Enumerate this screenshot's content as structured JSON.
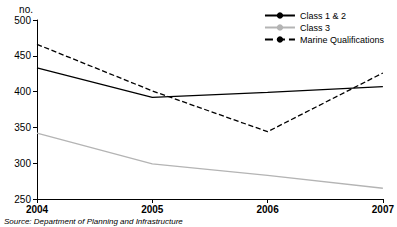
{
  "chart_data": {
    "type": "line",
    "y_label": "no.",
    "source": "Source: Department of Planning and Infrastructure",
    "categories": [
      "2004",
      "2005",
      "2006",
      "2007"
    ],
    "series": [
      {
        "name": "Class 1 & 2",
        "color": "#000000",
        "line_style": "solid",
        "values": [
          433,
          392,
          399,
          407
        ]
      },
      {
        "name": "Class 3",
        "color": "#b4b4b4",
        "line_style": "solid",
        "values": [
          342,
          299,
          283,
          265
        ]
      },
      {
        "name": "Marine Qualifications",
        "color": "#000000",
        "line_style": "dashed",
        "values": [
          466,
          401,
          344,
          426
        ]
      }
    ],
    "ylim": [
      250,
      500
    ],
    "yticks": [
      250,
      300,
      350,
      400,
      450,
      500
    ],
    "grid": false,
    "legend": "top-right",
    "marker": "none"
  }
}
